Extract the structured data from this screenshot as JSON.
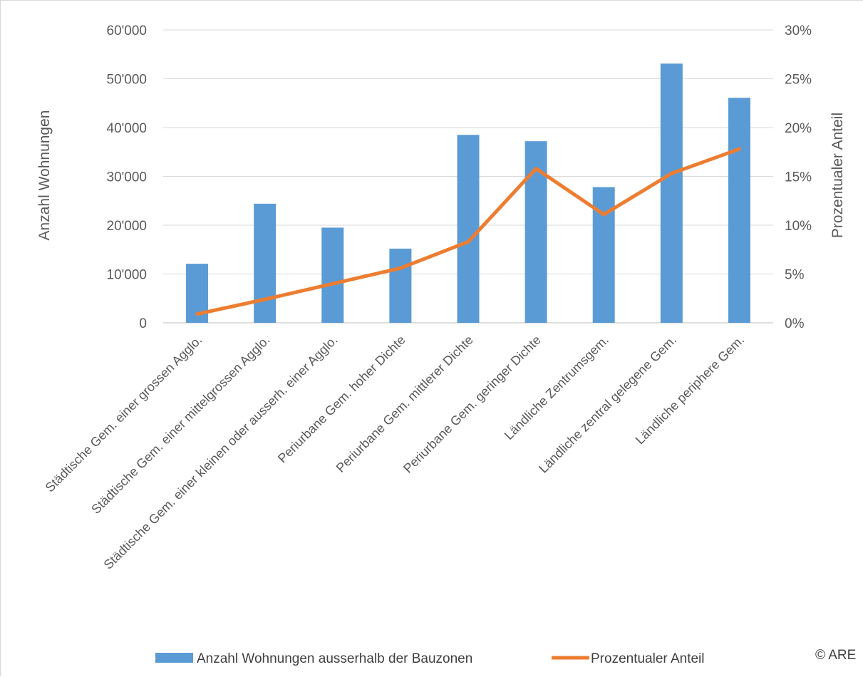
{
  "chart_data": {
    "type": "bar",
    "categories": [
      "Städtische Gem. einer grossen Agglo.",
      "Städtische Gem. einer mittelgrossen Agglo.",
      "Städtische Gem. einer kleinen oder ausserh. einer Agglo.",
      "Periurbane Gem. hoher Dichte",
      "Periurbane Gem. mittlerer Dichte",
      "Periurbane Gem. geringer Dichte",
      "Ländliche Zentrumsgem.",
      "Ländliche zentral gelegene Gem.",
      "Ländliche periphere Gem."
    ],
    "series": [
      {
        "name": "Anzahl Wohnungen ausserhalb der Bauzonen",
        "type": "bar",
        "axis": "left",
        "color": "#5b9bd5",
        "values": [
          12100,
          24400,
          19500,
          15200,
          38500,
          37200,
          27800,
          53100,
          46100
        ]
      },
      {
        "name": "Prozentualer Anteil",
        "type": "line",
        "axis": "right",
        "color": "#ed7d31",
        "values": [
          0.009,
          0.024,
          0.04,
          0.056,
          0.083,
          0.158,
          0.111,
          0.153,
          0.178
        ]
      }
    ],
    "ylabel": "Anzahl Wohnungen",
    "y2label": "Prozentualer Anteil",
    "ylim": [
      0,
      60000
    ],
    "y2lim": [
      0,
      0.3
    ],
    "yticks": [
      {
        "value": 0,
        "label": "0"
      },
      {
        "value": 10000,
        "label": "10'000"
      },
      {
        "value": 20000,
        "label": "20'000"
      },
      {
        "value": 30000,
        "label": "30'000"
      },
      {
        "value": 40000,
        "label": "40'000"
      },
      {
        "value": 50000,
        "label": "50'000"
      },
      {
        "value": 60000,
        "label": "60'000"
      }
    ],
    "y2ticks": [
      {
        "value": 0,
        "label": "0%"
      },
      {
        "value": 0.05,
        "label": "5%"
      },
      {
        "value": 0.1,
        "label": "10%"
      },
      {
        "value": 0.15,
        "label": "15%"
      },
      {
        "value": 0.2,
        "label": "20%"
      },
      {
        "value": 0.25,
        "label": "25%"
      },
      {
        "value": 0.3,
        "label": "30%"
      }
    ],
    "grid": true,
    "legend_position": "bottom"
  },
  "credit": "© ARE"
}
